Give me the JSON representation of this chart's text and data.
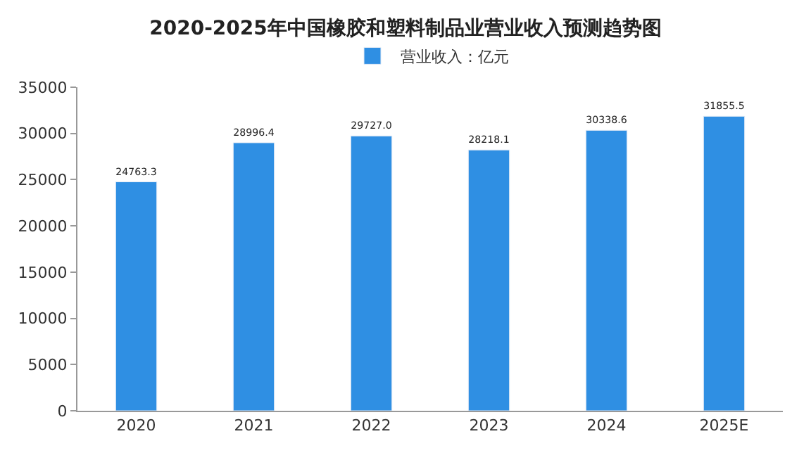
{
  "chart_data": {
    "type": "bar",
    "title": "2020-2025年中国橡胶和塑料制品业营业收入预测趋势图",
    "categories": [
      "2020",
      "2021",
      "2022",
      "2023",
      "2024",
      "2025E"
    ],
    "series": [
      {
        "name": "营业收入：亿元",
        "color": "#2f8fe3",
        "values": [
          24763.3,
          28996.4,
          29727.0,
          28218.1,
          30338.6,
          31855.5
        ],
        "value_labels": [
          "24763.3",
          "28996.4",
          "29727.0",
          "28218.1",
          "30338.6",
          "31855.5"
        ]
      }
    ],
    "ylim": [
      0,
      35000
    ],
    "yticks": [
      0,
      5000,
      10000,
      15000,
      20000,
      25000,
      30000,
      35000
    ],
    "legend": "top"
  }
}
